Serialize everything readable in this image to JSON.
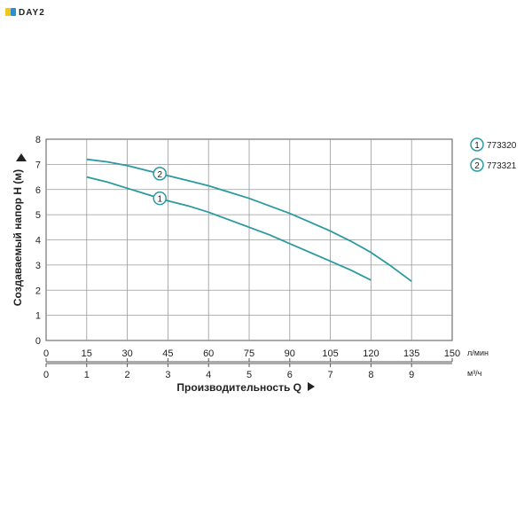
{
  "logo": {
    "text": "DAY2",
    "colors": [
      "#f5c518",
      "#2b8fd6"
    ]
  },
  "chart_data": {
    "type": "line",
    "ylabel": "Создаваемый напор H (м)",
    "xlabel": "Производительность Q",
    "ylim": [
      0,
      8
    ],
    "y_ticks": [
      "0",
      "1",
      "2",
      "3",
      "4",
      "5",
      "6",
      "7",
      "8"
    ],
    "x_ticks_lmin": [
      "0",
      "15",
      "30",
      "45",
      "60",
      "75",
      "90",
      "105",
      "120",
      "135",
      "150"
    ],
    "x_ticks_m3h": [
      "0",
      "1",
      "2",
      "3",
      "4",
      "5",
      "6",
      "7",
      "8",
      "9"
    ],
    "x_unit_lmin": "л/мин",
    "x_unit_m3h": "м³/ч",
    "xlim_m3h": [
      0,
      10
    ],
    "grid": true,
    "line_color": "#2a9aa0",
    "series": [
      {
        "name": "773320",
        "marker_label": "1",
        "marker_x": 2.8,
        "x": [
          1.0,
          1.5,
          2.0,
          2.5,
          3.0,
          3.5,
          4.0,
          4.5,
          5.0,
          5.5,
          6.0,
          6.5,
          7.0,
          7.5,
          8.0
        ],
        "values": [
          6.5,
          6.3,
          6.05,
          5.8,
          5.55,
          5.35,
          5.1,
          4.8,
          4.5,
          4.2,
          3.85,
          3.5,
          3.15,
          2.8,
          2.4
        ]
      },
      {
        "name": "773321",
        "marker_label": "2",
        "marker_x": 2.8,
        "x": [
          1.0,
          1.5,
          2.0,
          2.5,
          3.0,
          3.5,
          4.0,
          4.5,
          5.0,
          5.5,
          6.0,
          6.5,
          7.0,
          7.5,
          8.0,
          8.5,
          9.0
        ],
        "values": [
          7.2,
          7.1,
          6.95,
          6.75,
          6.55,
          6.35,
          6.15,
          5.9,
          5.65,
          5.35,
          5.05,
          4.7,
          4.35,
          3.95,
          3.5,
          2.95,
          2.35
        ]
      }
    ],
    "legend_position": "top-right"
  }
}
